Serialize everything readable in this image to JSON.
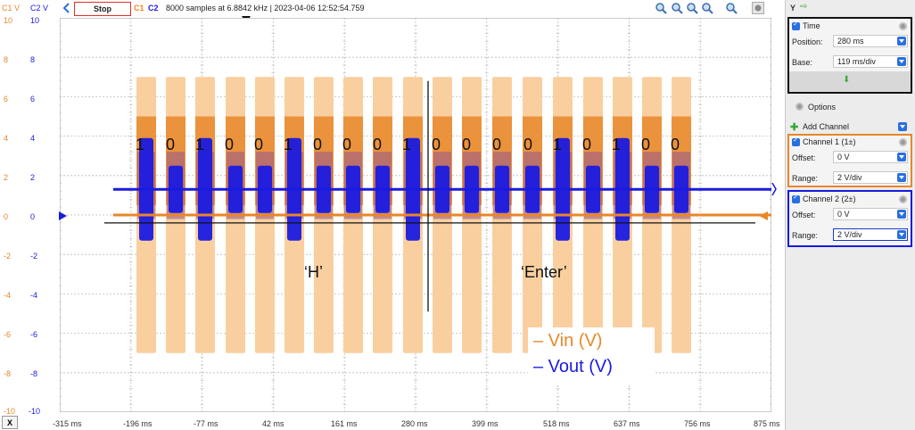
{
  "toolbar": {
    "left_labels": [
      "C1 V",
      "C2 V"
    ],
    "stop_label": "Stop",
    "channel_tags": [
      "C1",
      "C2"
    ],
    "acquisition_info": "8000 samples at 6.8842 kHz | 2023-04-06 12:52:54.759",
    "zoom_icons": [
      "zoom-in-icon",
      "zoom-out-icon",
      "zoom-fit-icon",
      "zoom-reset-icon",
      "zoom-icon",
      "settings-icon"
    ],
    "y_label": "Y"
  },
  "plot": {
    "c1_ticks": [
      "10",
      "8",
      "6",
      "4",
      "2",
      "0",
      "-2",
      "-4",
      "-6",
      "-8",
      "-10"
    ],
    "c2_ticks": [
      "10",
      "8",
      "6",
      "4",
      "2",
      "0",
      "-2",
      "-4",
      "-6",
      "-8",
      "-10"
    ],
    "x_ticks": [
      "-315 ms",
      "-196 ms",
      "-77 ms",
      "42 ms",
      "161 ms",
      "280 ms",
      "399 ms",
      "518 ms",
      "637 ms",
      "756 ms",
      "875 ms"
    ],
    "x_button": "X"
  },
  "annotations": {
    "bits": [
      "1",
      "0",
      "1",
      "0",
      "0",
      "1",
      "0",
      "0",
      "0",
      "1",
      "0",
      "0",
      "0",
      "0",
      "1",
      "0",
      "1",
      "0",
      "0"
    ],
    "char1": "‘H’",
    "char2": "‘Enter’"
  },
  "legend": {
    "vin": "– Vin (V)",
    "vout": "– Vout (V)"
  },
  "panel": {
    "time": {
      "title": "Time",
      "position_label": "Position:",
      "position_value": "280 ms",
      "base_label": "Base:",
      "base_value": "119 ms/div"
    },
    "options_label": "Options",
    "add_channel_label": "Add Channel",
    "channel1": {
      "title": "Channel 1 (1±)",
      "offset_label": "Offset:",
      "offset_value": "0 V",
      "range_label": "Range:",
      "range_value": "2 V/div"
    },
    "channel2": {
      "title": "Channel 2 (2±)",
      "offset_label": "Offset:",
      "offset_value": "0 V",
      "range_label": "Range:",
      "range_value": "2 V/div"
    }
  },
  "colors": {
    "c1": "#e8872a",
    "c1_light": "#f9cf9f",
    "c2": "#1a1ae0",
    "c2_light": "#9e9ee8"
  }
}
